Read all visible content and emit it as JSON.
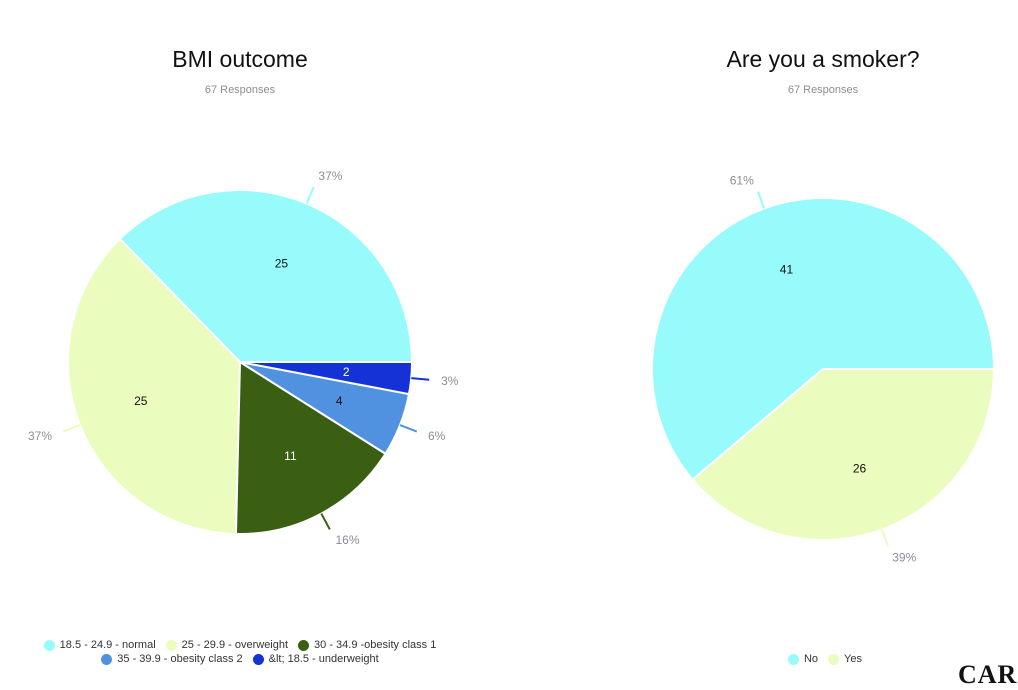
{
  "chart_data": [
    {
      "type": "pie",
      "title": "BMI outcome",
      "subtitle": "67 Responses",
      "categories": [
        "18.5 - 24.9 - normal",
        "25 - 29.9 - overweight",
        "30 - 34.9 -obesity class 1",
        "35 - 39.9 - obesity class 2",
        "&lt; 18.5 - underweight"
      ],
      "values": [
        25,
        25,
        11,
        4,
        2
      ],
      "percent_labels": [
        "37%",
        "37%",
        "16%",
        "6%",
        "3%"
      ],
      "colors": [
        "#98fbfb",
        "#eafcbe",
        "#3a5e12",
        "#5092e0",
        "#1432d6"
      ],
      "legend_position": "bottom"
    },
    {
      "type": "pie",
      "title": "Are you a smoker?",
      "subtitle": "67 Responses",
      "categories": [
        "No",
        "Yes"
      ],
      "values": [
        41,
        26
      ],
      "percent_labels": [
        "61%",
        "39%"
      ],
      "colors": [
        "#98fbfb",
        "#eafcbe"
      ],
      "legend_position": "bottom"
    }
  ],
  "corner_text": "CAR"
}
